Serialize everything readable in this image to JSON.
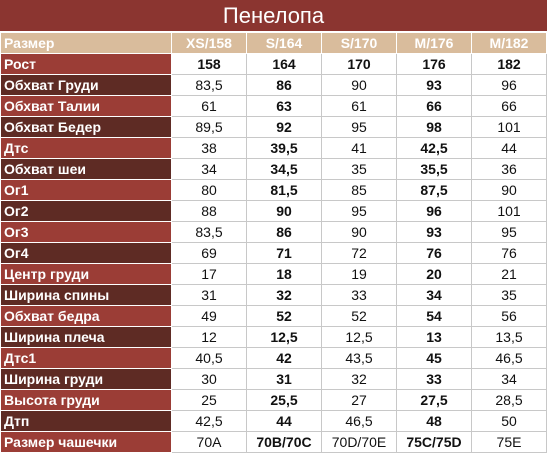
{
  "title": "Пенелопа",
  "header": [
    "Размер",
    "XS/158",
    "S/164",
    "S/170",
    "M/176",
    "M/182"
  ],
  "rows": [
    {
      "label": "Рост",
      "values": [
        "158",
        "164",
        "170",
        "176",
        "182"
      ]
    },
    {
      "label": "Обхват Груди",
      "values": [
        "83,5",
        "86",
        "90",
        "93",
        "96"
      ]
    },
    {
      "label": "Обхват Талии",
      "values": [
        "61",
        "63",
        "61",
        "66",
        "66"
      ]
    },
    {
      "label": "Обхват Бедер",
      "values": [
        "89,5",
        "92",
        "95",
        "98",
        "101"
      ]
    },
    {
      "label": "Дтс",
      "values": [
        "38",
        "39,5",
        "41",
        "42,5",
        "44"
      ]
    },
    {
      "label": "Обхват шеи",
      "values": [
        "34",
        "34,5",
        "35",
        "35,5",
        "36"
      ]
    },
    {
      "label": "Ог1",
      "values": [
        "80",
        "81,5",
        "85",
        "87,5",
        "90"
      ]
    },
    {
      "label": "Ог2",
      "values": [
        "88",
        "90",
        "95",
        "96",
        "101"
      ]
    },
    {
      "label": "Ог3",
      "values": [
        "83,5",
        "86",
        "90",
        "93",
        "95"
      ]
    },
    {
      "label": "Ог4",
      "values": [
        "69",
        "71",
        "72",
        "76",
        "76"
      ]
    },
    {
      "label": "Центр груди",
      "values": [
        "17",
        "18",
        "19",
        "20",
        "21"
      ]
    },
    {
      "label": "Ширина спины",
      "values": [
        "31",
        "32",
        "33",
        "34",
        "35"
      ]
    },
    {
      "label": "Обхват бедра",
      "values": [
        "49",
        "52",
        "52",
        "54",
        "56"
      ]
    },
    {
      "label": "Ширина плеча",
      "values": [
        "12",
        "12,5",
        "12,5",
        "13",
        "13,5"
      ]
    },
    {
      "label": "Дтс1",
      "values": [
        "40,5",
        "42",
        "43,5",
        "45",
        "46,5"
      ]
    },
    {
      "label": "Ширина груди",
      "values": [
        "30",
        "31",
        "32",
        "33",
        "34"
      ]
    },
    {
      "label": "Высота груди",
      "values": [
        "25",
        "25,5",
        "27",
        "27,5",
        "28,5"
      ]
    },
    {
      "label": "Дтп",
      "values": [
        "42,5",
        "44",
        "46,5",
        "48",
        "50"
      ]
    },
    {
      "label": "Размер чашечки",
      "values": [
        "70A",
        "70B/70C",
        "70D/70E",
        "75C/75D",
        "75E"
      ]
    }
  ]
}
